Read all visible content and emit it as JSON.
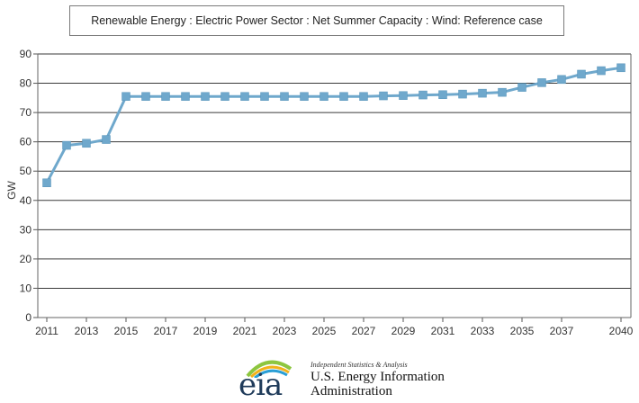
{
  "chart_data": {
    "type": "line",
    "title": "Renewable Energy : Electric Power Sector : Net Summer Capacity : Wind: Reference case",
    "ylabel": "GW",
    "xlabel": "",
    "ylim": [
      0,
      90
    ],
    "yticks": [
      0,
      10,
      20,
      30,
      40,
      50,
      60,
      70,
      80,
      90
    ],
    "xlim": [
      2011,
      2040
    ],
    "xticks": [
      2011,
      2013,
      2015,
      2017,
      2019,
      2021,
      2023,
      2025,
      2027,
      2029,
      2031,
      2033,
      2035,
      2037,
      2040
    ],
    "grid": true,
    "color": "#6fa8cc",
    "x": [
      2011,
      2012,
      2013,
      2014,
      2015,
      2016,
      2017,
      2018,
      2019,
      2020,
      2021,
      2022,
      2023,
      2024,
      2025,
      2026,
      2027,
      2028,
      2029,
      2030,
      2031,
      2032,
      2033,
      2034,
      2035,
      2036,
      2037,
      2038,
      2039,
      2040
    ],
    "series": [
      {
        "values": [
          46.0,
          58.8,
          59.5,
          60.8,
          75.5,
          75.5,
          75.5,
          75.5,
          75.5,
          75.5,
          75.5,
          75.5,
          75.5,
          75.5,
          75.5,
          75.5,
          75.5,
          75.7,
          75.8,
          76.0,
          76.1,
          76.3,
          76.6,
          76.9,
          78.6,
          80.2,
          81.3,
          83.1,
          84.3,
          85.3
        ]
      }
    ]
  },
  "footer": {
    "logo_text": "eia",
    "tagline": "Independent Statistics & Analysis",
    "org_line1": "U.S. Energy Information",
    "org_line2": "Administration"
  }
}
